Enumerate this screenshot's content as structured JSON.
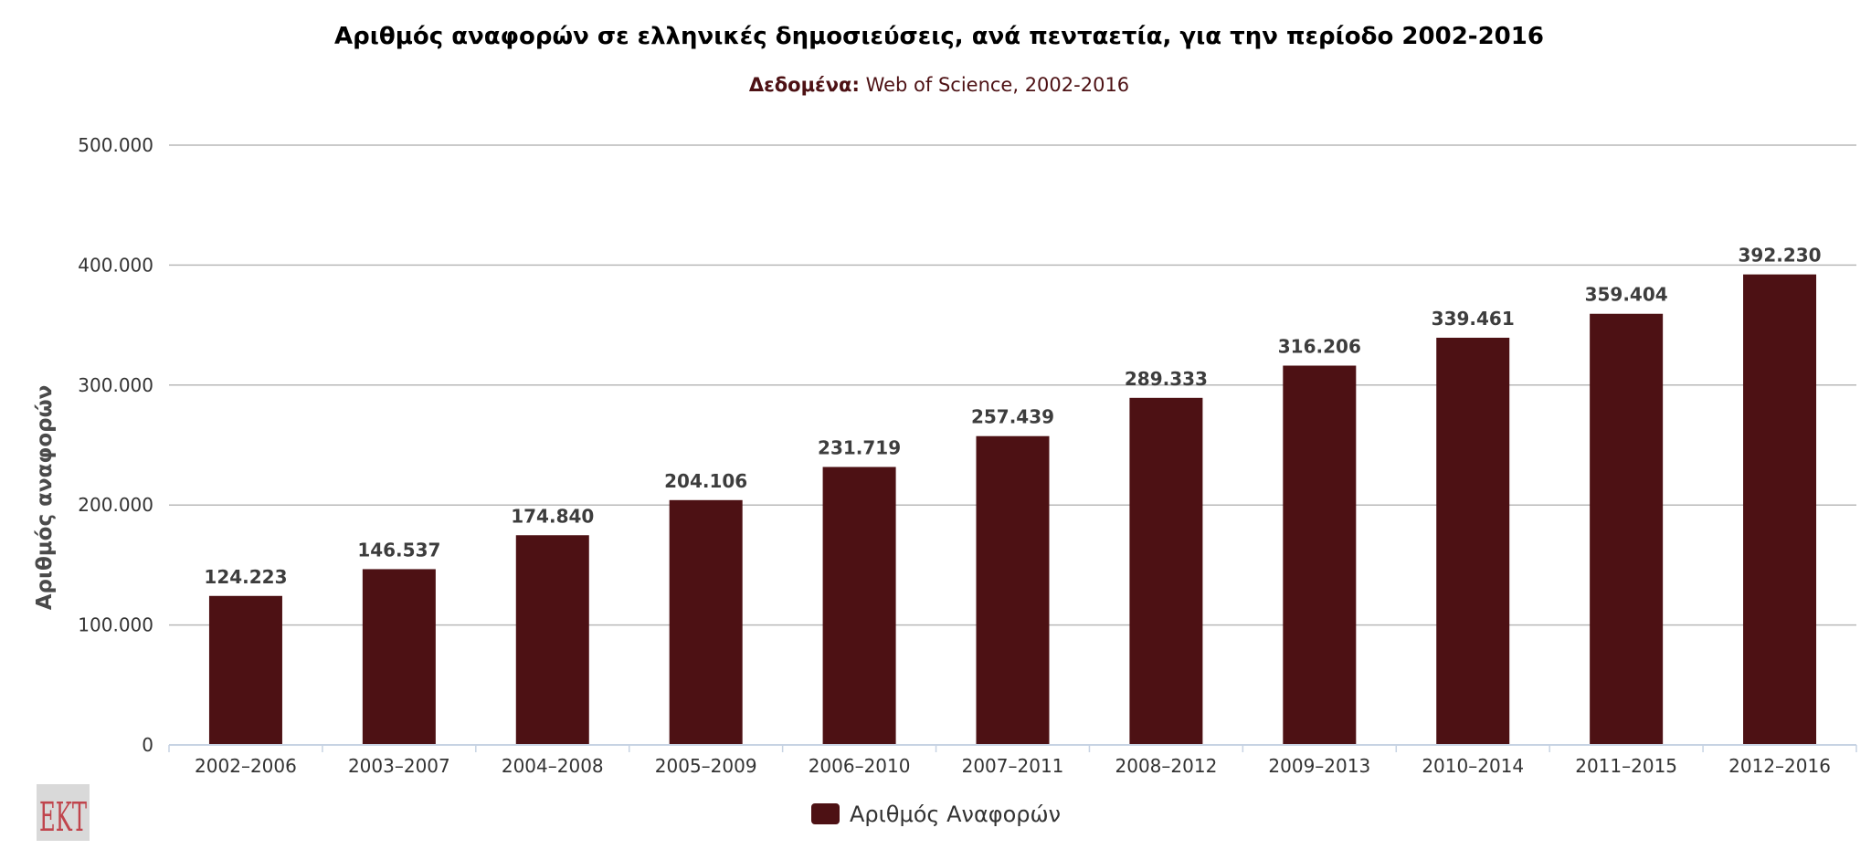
{
  "chart_data": {
    "type": "bar",
    "title": "Αριθμός αναφορών σε ελληνικές δημοσιεύσεις, ανά πενταετία, για την περίοδο 2002-2016",
    "subtitle_label": "Δεδομένα:",
    "subtitle_text": " Web of Science, 2002-2016",
    "ylabel": "Αριθμός αναφορών",
    "xlabel": "",
    "ylim": [
      0,
      500000
    ],
    "yticks": [
      0,
      100000,
      200000,
      300000,
      400000,
      500000
    ],
    "ytick_labels": [
      "0",
      "100.000",
      "200.000",
      "300.000",
      "400.000",
      "500.000"
    ],
    "grid": true,
    "legend_position": "bottom-center",
    "categories": [
      "2002–2006",
      "2003–2007",
      "2004–2008",
      "2005–2009",
      "2006–2010",
      "2007–2011",
      "2008–2012",
      "2009–2013",
      "2010–2014",
      "2011–2015",
      "2012–2016"
    ],
    "series": [
      {
        "name": "Αριθμός Αναφορών",
        "color": "#4d1114",
        "values": [
          124223,
          146537,
          174840,
          204106,
          231719,
          257439,
          289333,
          316206,
          339461,
          359404,
          392230
        ],
        "value_labels": [
          "124.223",
          "146.537",
          "174.840",
          "204.106",
          "231.719",
          "257.439",
          "289.333",
          "316.206",
          "339.461",
          "359.404",
          "392.230"
        ]
      }
    ]
  },
  "logo": {
    "text": "EKT"
  }
}
